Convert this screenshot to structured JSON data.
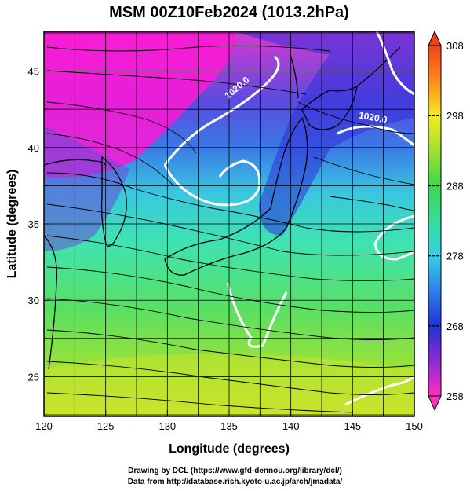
{
  "chart_data": {
    "type": "heatmap",
    "title": "MSM 00Z10Feb2024 (1013.2hPa)",
    "xlabel": "Longitude (degrees)",
    "ylabel": "Latitude  (degrees)",
    "xlim": [
      120,
      150
    ],
    "ylim": [
      22.4,
      47.6
    ],
    "x_ticks": [
      120,
      125,
      130,
      135,
      140,
      145,
      150
    ],
    "y_ticks": [
      25,
      30,
      35,
      40,
      45
    ],
    "grid": true,
    "colorbar": {
      "min": 258,
      "max": 308,
      "ticks": [
        258,
        268,
        278,
        288,
        298,
        308
      ],
      "position": "right"
    },
    "contour_labels": [
      {
        "text": "1020.0",
        "lon": 137.8,
        "lat": 41.5
      },
      {
        "text": "1020.0",
        "lon": 146.5,
        "lat": 41.5
      }
    ],
    "overlay": "streamlines"
  },
  "credits": {
    "line1": "Drawing by DCL (https://www.gfd-dennou.org/library/dcl/)",
    "line2": "Data from http://database.rish.kyoto-u.ac.jp/arch/jmadata/"
  }
}
